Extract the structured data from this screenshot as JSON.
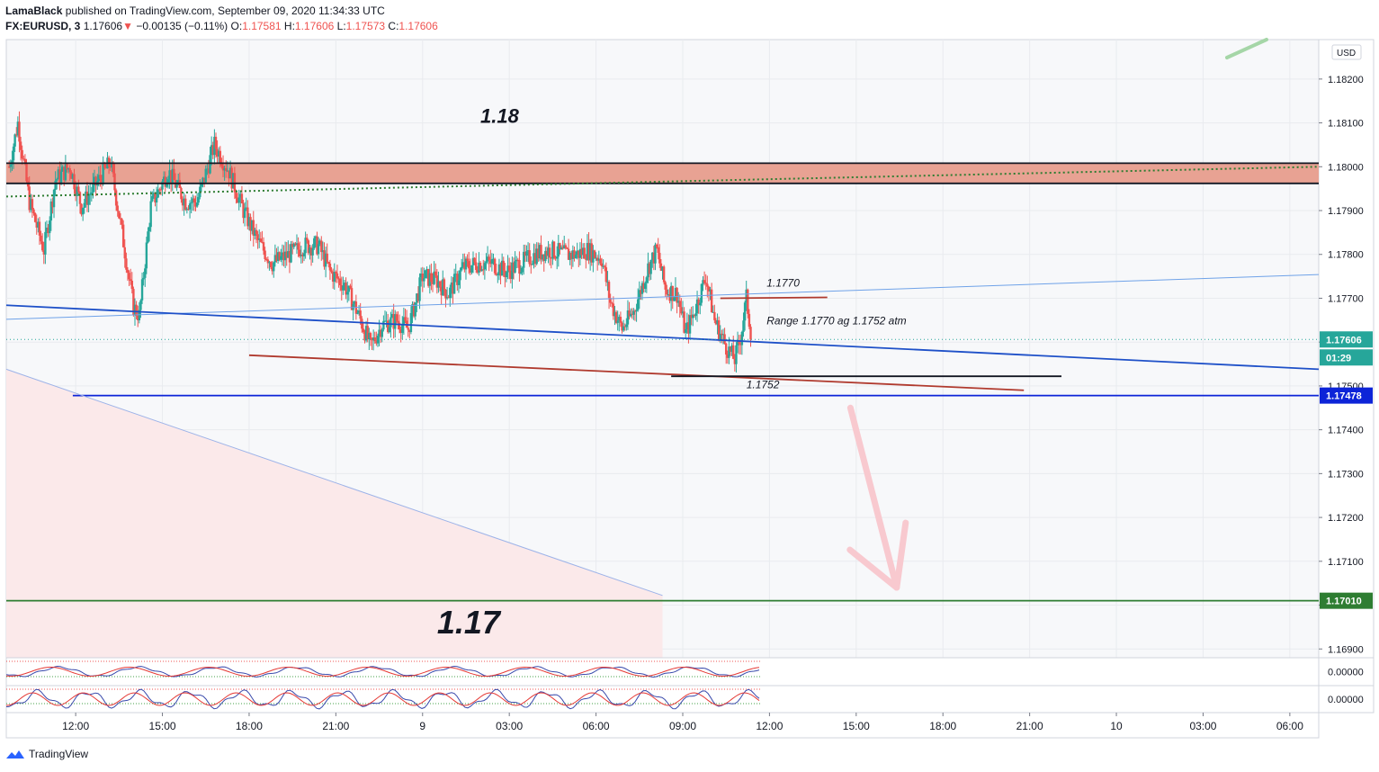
{
  "header": {
    "publisher": "LamaBlack",
    "published_text": "published on TradingView.com, September 09, 2020 11:34:33 UTC",
    "symbol": "FX:EURUSD, 3",
    "last": "1.17606",
    "change_arrow": "▼",
    "change": "−0.00135 (−0.11%)",
    "o_label": "O:",
    "o_value": "1.17581",
    "h_label": "H:",
    "h_value": "1.17606",
    "l_label": "L:",
    "l_value": "1.17573",
    "c_label": "C:",
    "c_value": "1.17606"
  },
  "footer": {
    "brand": "TradingView",
    "brand_icon": "tradingview-logo-icon"
  },
  "chart_data": {
    "type": "candlestick",
    "currency_label": "USD",
    "y_ticks": [
      "1.18200",
      "1.18100",
      "1.18000",
      "1.17900",
      "1.17800",
      "1.17700",
      "1.17600",
      "1.17500",
      "1.17400",
      "1.17300",
      "1.17200",
      "1.17100",
      "1.17000",
      "1.16900"
    ],
    "y_tick_values": [
      1.182,
      1.181,
      1.18,
      1.179,
      1.178,
      1.177,
      1.176,
      1.175,
      1.174,
      1.173,
      1.172,
      1.171,
      1.17,
      1.169
    ],
    "ylim": [
      1.1688,
      1.1829
    ],
    "x_ticks": [
      "12:00",
      "15:00",
      "18:00",
      "21:00",
      "9",
      "03:00",
      "06:00",
      "09:00",
      "12:00",
      "15:00",
      "18:00",
      "21:00",
      "10",
      "03:00",
      "06:00"
    ],
    "x_tick_hours": [
      12,
      15,
      18,
      21,
      24,
      27,
      30,
      33,
      36,
      39,
      42,
      45,
      48,
      51,
      54
    ],
    "xlim_hours": [
      9.6,
      55.0
    ],
    "price_badges": [
      {
        "label": "1.17606",
        "value": 1.17606,
        "color": "#26a69a"
      },
      {
        "label": "01:29",
        "value": 1.17566,
        "color": "#26a69a"
      },
      {
        "label": "1.17478",
        "value": 1.17478,
        "color": "#0d24d8"
      },
      {
        "label": "1.17010",
        "value": 1.1701,
        "color": "#2e7d32"
      }
    ],
    "annotations": [
      {
        "text": "1.18",
        "x_hour": 26.0,
        "y": 1.181,
        "size": "medium"
      },
      {
        "text": "1.17",
        "x_hour": 24.5,
        "y": 1.16935,
        "size": "large"
      },
      {
        "text": "1.1770",
        "x_hour": 35.9,
        "y": 1.17727,
        "size": "small"
      },
      {
        "text": "Range 1.1770 ag 1.1752 atm",
        "x_hour": 35.9,
        "y": 1.1764,
        "size": "small"
      },
      {
        "text": "1.1752",
        "x_hour": 35.2,
        "y": 1.17495,
        "size": "small"
      }
    ],
    "zones": [
      {
        "name": "resistance-zone-1.18",
        "y_from": 1.17962,
        "y_to": 1.18008,
        "color": "#e8a293"
      },
      {
        "name": "bearish-target-area",
        "y_from": 1.169,
        "y_to": 1.1701,
        "color": "#fbe9ea"
      }
    ],
    "lines": [
      {
        "name": "resistance-line-top",
        "x1": 9.6,
        "y1": 1.18008,
        "x2": 55.0,
        "y2": 1.18008,
        "color": "#131722"
      },
      {
        "name": "resistance-line-bottom",
        "x1": 9.6,
        "y1": 1.17962,
        "x2": 55.0,
        "y2": 1.17962,
        "color": "#131722"
      },
      {
        "name": "upper-trendline",
        "x1": 9.6,
        "y1": 1.17652,
        "x2": 55.0,
        "y2": 1.17754,
        "color": "#6fa2e8"
      },
      {
        "name": "main-trendline",
        "x1": 9.6,
        "y1": 1.17684,
        "x2": 55.0,
        "y2": 1.17538,
        "color": "#1e50c8"
      },
      {
        "name": "support-line-1.17478",
        "x1": 11.9,
        "y1": 1.17478,
        "x2": 55.0,
        "y2": 1.17478,
        "color": "#0d24d8"
      },
      {
        "name": "target-line-1.1701",
        "x1": 9.6,
        "y1": 1.1701,
        "x2": 55.0,
        "y2": 1.1701,
        "color": "#2e7d32"
      },
      {
        "name": "lower-channel-line",
        "x1": 18.0,
        "y1": 1.1757,
        "x2": 44.8,
        "y2": 1.1749,
        "color": "#b03a2e"
      },
      {
        "name": "range-top-line",
        "x1": 34.3,
        "y1": 1.177,
        "x2": 38.0,
        "y2": 1.17702,
        "color": "#b03a2e"
      },
      {
        "name": "range-bottom-line",
        "x1": 32.6,
        "y1": 1.17522,
        "x2": 46.1,
        "y2": 1.17522,
        "color": "#131722"
      },
      {
        "name": "descending-light-line",
        "x1": 9.6,
        "y1": 1.17538,
        "x2": 32.3,
        "y2": 1.17022,
        "color": "#9db3e8"
      },
      {
        "name": "moving-average",
        "x1": 9.6,
        "y1": 1.17932,
        "x2": 55.0,
        "y2": 1.18,
        "color": "#2e7d32",
        "dotted": true
      }
    ],
    "arrow": {
      "name": "bearish-arrow",
      "from": [
        38.8,
        1.1745
      ],
      "to": [
        40.4,
        1.1704
      ],
      "color": "#f8c9cf"
    },
    "series_ohlc_path": [
      [
        9.7,
        1.18
      ],
      [
        10.0,
        1.181
      ],
      [
        10.4,
        1.1792
      ],
      [
        10.9,
        1.1781
      ],
      [
        11.3,
        1.1797
      ],
      [
        11.8,
        1.18
      ],
      [
        12.2,
        1.1791
      ],
      [
        12.7,
        1.1796
      ],
      [
        13.2,
        1.1801
      ],
      [
        13.6,
        1.1785
      ],
      [
        14.0,
        1.1768
      ],
      [
        14.2,
        1.1766
      ],
      [
        14.6,
        1.1791
      ],
      [
        15.2,
        1.1799
      ],
      [
        15.8,
        1.1792
      ],
      [
        16.2,
        1.1792
      ],
      [
        16.8,
        1.1805
      ],
      [
        17.3,
        1.1799
      ],
      [
        17.8,
        1.179
      ],
      [
        18.3,
        1.1783
      ],
      [
        18.8,
        1.1778
      ],
      [
        19.4,
        1.178
      ],
      [
        19.9,
        1.1782
      ],
      [
        20.4,
        1.1782
      ],
      [
        20.8,
        1.1776
      ],
      [
        21.3,
        1.1773
      ],
      [
        21.8,
        1.1766
      ],
      [
        22.2,
        1.1759
      ],
      [
        22.6,
        1.1764
      ],
      [
        23.1,
        1.1765
      ],
      [
        23.5,
        1.1763
      ],
      [
        24.0,
        1.1775
      ],
      [
        24.5,
        1.1774
      ],
      [
        24.9,
        1.1771
      ],
      [
        25.4,
        1.1777
      ],
      [
        25.9,
        1.1778
      ],
      [
        26.4,
        1.1778
      ],
      [
        26.9,
        1.1776
      ],
      [
        27.4,
        1.1778
      ],
      [
        27.9,
        1.178
      ],
      [
        28.4,
        1.1781
      ],
      [
        28.9,
        1.178
      ],
      [
        29.3,
        1.178
      ],
      [
        29.7,
        1.1781
      ],
      [
        30.2,
        1.1779
      ],
      [
        30.5,
        1.1769
      ],
      [
        30.9,
        1.1763
      ],
      [
        31.3,
        1.1767
      ],
      [
        31.8,
        1.1777
      ],
      [
        32.1,
        1.1781
      ],
      [
        32.4,
        1.1772
      ],
      [
        32.8,
        1.1771
      ],
      [
        33.1,
        1.1762
      ],
      [
        33.4,
        1.1767
      ],
      [
        33.8,
        1.1775
      ],
      [
        34.1,
        1.1765
      ],
      [
        34.5,
        1.1759
      ],
      [
        34.8,
        1.1756
      ],
      [
        35.0,
        1.1761
      ],
      [
        35.2,
        1.177
      ],
      [
        35.4,
        1.176
      ]
    ],
    "indicator_panels": [
      {
        "name": "oscillator-panel-1",
        "tick": "0.00000"
      },
      {
        "name": "oscillator-panel-2",
        "tick": "0.00000"
      }
    ]
  }
}
